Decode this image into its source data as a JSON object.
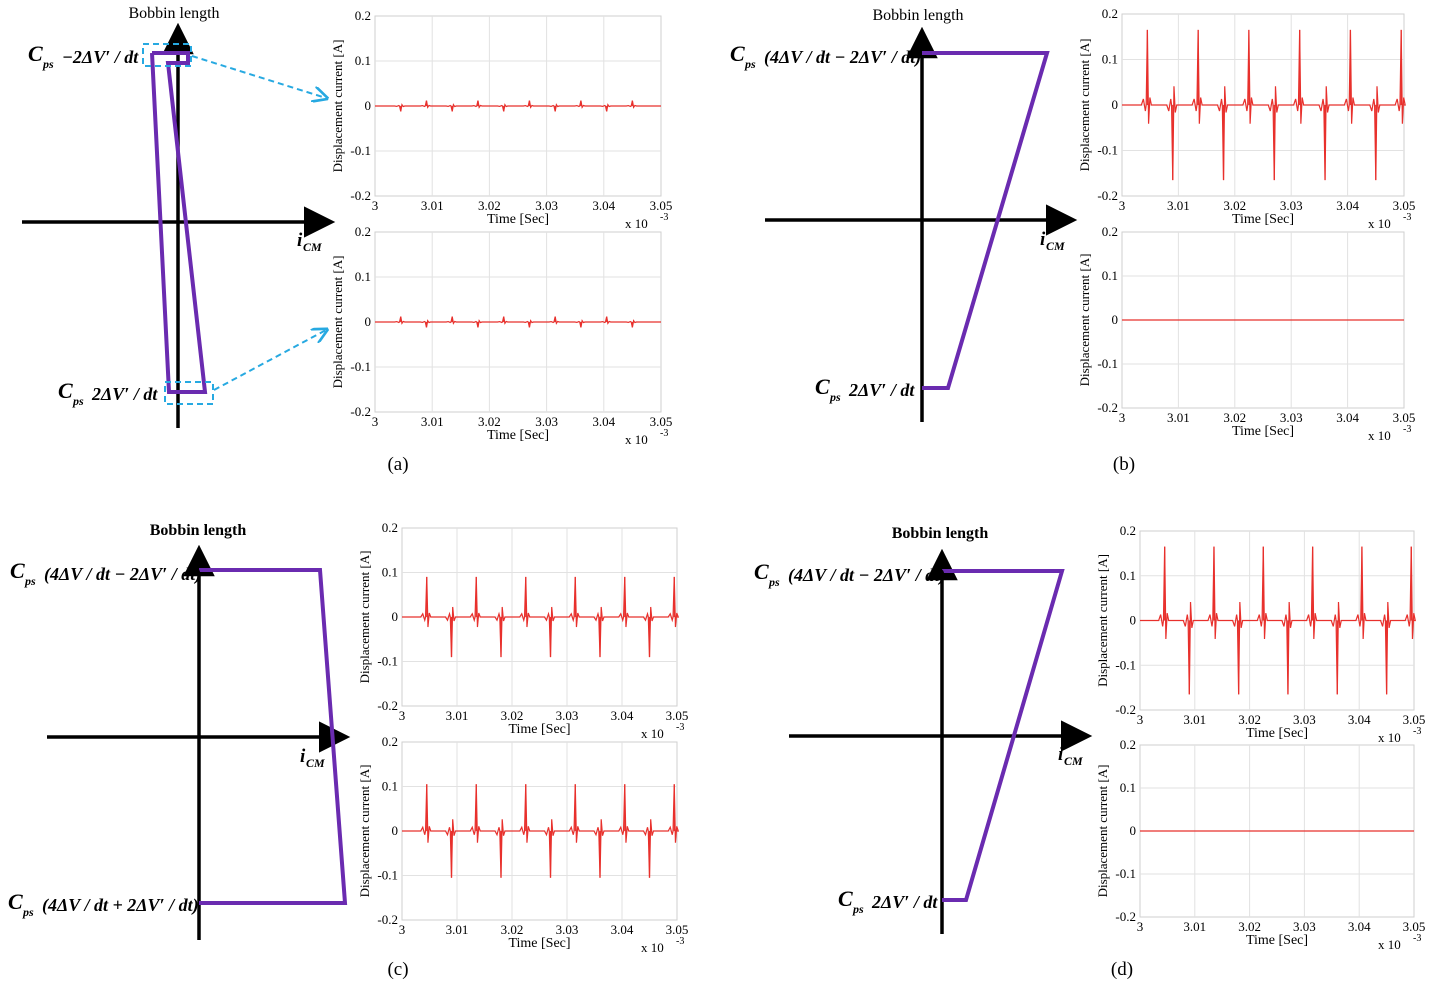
{
  "colors": {
    "trace": "#e8302c",
    "profile": "#6a2bb0",
    "highlight": "#27a9e1",
    "axis": "#000000",
    "grid": "#e2e2e2"
  },
  "common": {
    "ylabel": "Displacement current [A]",
    "xlabel": "Time [Sec]",
    "x_multiplier": "x 10",
    "x_exponent": "-3",
    "x_ticks": [
      "3",
      "3.01",
      "3.02",
      "3.03",
      "3.04",
      "3.05"
    ],
    "y_ticks": [
      "0.2",
      "0.1",
      "0",
      "-0.1",
      "-0.2"
    ],
    "diagram_y_label": "Bobbin length",
    "diagram_x_label": "i",
    "diagram_x_sub": "CM"
  },
  "panels": [
    {
      "label": "(a)",
      "top_formula": {
        "coef": "C",
        "sub": "ps",
        "expr": "−2ΔV′ / dt"
      },
      "bottom_formula": {
        "coef": "C",
        "sub": "ps",
        "expr": "2ΔV′ / dt"
      },
      "profile_shape": "narrow-slant",
      "highlight_boxes": true
    },
    {
      "label": "(b)",
      "top_formula": {
        "coef": "C",
        "sub": "ps",
        "expr": "(4ΔV / dt − 2ΔV′ / dt)"
      },
      "bottom_formula": {
        "coef": "C",
        "sub": "ps",
        "expr": "2ΔV′ / dt"
      },
      "profile_shape": "wide-slant",
      "highlight_boxes": false
    },
    {
      "label": "(c)",
      "top_formula": {
        "coef": "C",
        "sub": "ps",
        "expr": "(4ΔV / dt − 2ΔV′ / dt)"
      },
      "bottom_formula": {
        "coef": "C",
        "sub": "ps",
        "expr": "(4ΔV / dt + 2ΔV′ / dt)"
      },
      "profile_shape": "rectangle",
      "highlight_boxes": false
    },
    {
      "label": "(d)",
      "top_formula": {
        "coef": "C",
        "sub": "ps",
        "expr": "(4ΔV / dt − 2ΔV′ / dt)"
      },
      "bottom_formula": {
        "coef": "C",
        "sub": "ps",
        "expr": "2ΔV′ / dt"
      },
      "profile_shape": "wide-slant",
      "highlight_boxes": false
    }
  ],
  "chart_data": [
    {
      "panel": "(a)",
      "position": "top",
      "type": "line",
      "xlabel": "Time [Sec]",
      "ylabel": "Displacement current [A]",
      "xlim": [
        3.0,
        3.05
      ],
      "ylim": [
        -0.2,
        0.2
      ],
      "x_scale_label": "x 10^-3",
      "spike_times": [
        3.0045,
        3.009,
        3.0135,
        3.018,
        3.0225,
        3.027,
        3.0315,
        3.036,
        3.0405,
        3.045
      ],
      "spike_amplitudes": [
        -0.012,
        0.012,
        -0.012,
        0.012,
        -0.012,
        0.012,
        -0.012,
        0.012,
        -0.012,
        0.012
      ]
    },
    {
      "panel": "(a)",
      "position": "bottom",
      "type": "line",
      "xlabel": "Time [Sec]",
      "ylabel": "Displacement current [A]",
      "xlim": [
        3.0,
        3.05
      ],
      "ylim": [
        -0.2,
        0.2
      ],
      "x_scale_label": "x 10^-3",
      "spike_times": [
        3.0045,
        3.009,
        3.0135,
        3.018,
        3.0225,
        3.027,
        3.0315,
        3.036,
        3.0405,
        3.045
      ],
      "spike_amplitudes": [
        0.012,
        -0.012,
        0.012,
        -0.012,
        0.012,
        -0.012,
        0.012,
        -0.012,
        0.012,
        -0.012
      ]
    },
    {
      "panel": "(b)",
      "position": "top",
      "type": "line",
      "xlabel": "Time [Sec]",
      "ylabel": "Displacement current [A]",
      "xlim": [
        3.0,
        3.05
      ],
      "ylim": [
        -0.2,
        0.2
      ],
      "x_scale_label": "x 10^-3",
      "spike_times": [
        3.0045,
        3.009,
        3.0135,
        3.018,
        3.0225,
        3.027,
        3.0315,
        3.036,
        3.0405,
        3.045,
        3.0495
      ],
      "spike_amplitudes": [
        0.165,
        -0.165,
        0.165,
        -0.165,
        0.165,
        -0.165,
        0.165,
        -0.165,
        0.165,
        -0.165,
        0.165
      ]
    },
    {
      "panel": "(b)",
      "position": "bottom",
      "type": "line",
      "xlabel": "Time [Sec]",
      "ylabel": "Displacement current [A]",
      "xlim": [
        3.0,
        3.05
      ],
      "ylim": [
        -0.2,
        0.2
      ],
      "x_scale_label": "x 10^-3",
      "spike_times": [],
      "spike_amplitudes": []
    },
    {
      "panel": "(c)",
      "position": "top",
      "type": "line",
      "xlabel": "Time [Sec]",
      "ylabel": "Displacement current [A]",
      "xlim": [
        3.0,
        3.05
      ],
      "ylim": [
        -0.2,
        0.2
      ],
      "x_scale_label": "x 10^-3",
      "spike_times": [
        3.0045,
        3.009,
        3.0135,
        3.018,
        3.0225,
        3.027,
        3.0315,
        3.036,
        3.0405,
        3.045,
        3.0495
      ],
      "spike_amplitudes": [
        0.09,
        -0.09,
        0.09,
        -0.09,
        0.09,
        -0.09,
        0.09,
        -0.09,
        0.09,
        -0.09,
        0.09
      ]
    },
    {
      "panel": "(c)",
      "position": "bottom",
      "type": "line",
      "xlabel": "Time [Sec]",
      "ylabel": "Displacement current [A]",
      "xlim": [
        3.0,
        3.05
      ],
      "ylim": [
        -0.2,
        0.2
      ],
      "x_scale_label": "x 10^-3",
      "spike_times": [
        3.0045,
        3.009,
        3.0135,
        3.018,
        3.0225,
        3.027,
        3.0315,
        3.036,
        3.0405,
        3.045,
        3.0495
      ],
      "spike_amplitudes": [
        0.105,
        -0.105,
        0.105,
        -0.105,
        0.105,
        -0.105,
        0.105,
        -0.105,
        0.105,
        -0.105,
        0.105
      ]
    },
    {
      "panel": "(d)",
      "position": "top",
      "type": "line",
      "xlabel": "Time [Sec]",
      "ylabel": "Displacement current [A]",
      "xlim": [
        3.0,
        3.05
      ],
      "ylim": [
        -0.2,
        0.2
      ],
      "x_scale_label": "x 10^-3",
      "spike_times": [
        3.0045,
        3.009,
        3.0135,
        3.018,
        3.0225,
        3.027,
        3.0315,
        3.036,
        3.0405,
        3.045,
        3.0495
      ],
      "spike_amplitudes": [
        0.165,
        -0.165,
        0.165,
        -0.165,
        0.165,
        -0.165,
        0.165,
        -0.165,
        0.165,
        -0.165,
        0.165
      ]
    },
    {
      "panel": "(d)",
      "position": "bottom",
      "type": "line",
      "xlabel": "Time [Sec]",
      "ylabel": "Displacement current [A]",
      "xlim": [
        3.0,
        3.05
      ],
      "ylim": [
        -0.2,
        0.2
      ],
      "x_scale_label": "x 10^-3",
      "spike_times": [],
      "spike_amplitudes": []
    }
  ]
}
